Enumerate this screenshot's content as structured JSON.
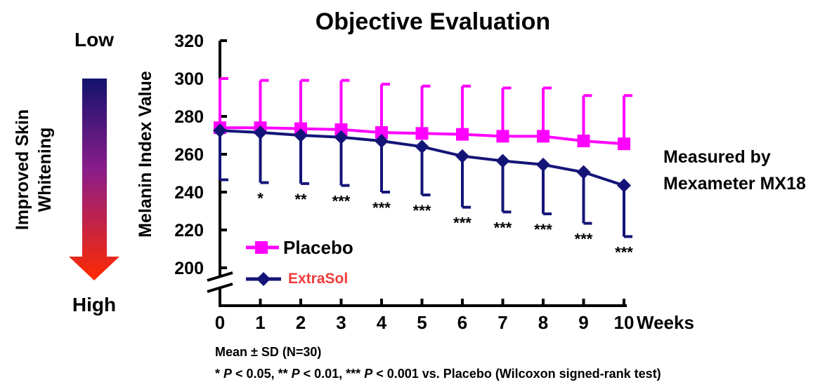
{
  "chart_data": {
    "type": "line",
    "title": "Objective Evaluation",
    "ylabel": "Melanin Index Value",
    "xlabel": "Weeks",
    "ylim": [
      200,
      320
    ],
    "yticks": [
      200,
      220,
      240,
      260,
      280,
      300,
      320
    ],
    "axis_break": true,
    "x": [
      0,
      1,
      2,
      3,
      4,
      5,
      6,
      7,
      8,
      9,
      10
    ],
    "grid": false,
    "legend_placement": "bottom-left",
    "series": [
      {
        "name": "Placebo",
        "color": "#ff00ff",
        "marker": "square",
        "values": [
          274,
          274,
          273.5,
          273,
          271.5,
          271,
          270.5,
          269.5,
          269.5,
          267,
          265.5
        ],
        "sd": [
          26,
          25,
          25.5,
          26,
          25.5,
          25,
          25.5,
          25.5,
          25.5,
          24,
          25.5
        ],
        "error_direction": "up"
      },
      {
        "name": "ExtraSol",
        "color": "#141478",
        "label_color": "#ee3b3b",
        "marker": "diamond",
        "values": [
          272.5,
          271.5,
          270,
          269,
          267,
          264,
          259,
          256.5,
          254.5,
          250.5,
          243.5
        ],
        "sd": [
          26,
          26.5,
          25.5,
          25.5,
          27,
          25.5,
          27,
          27,
          26,
          27,
          27
        ],
        "error_direction": "down"
      }
    ],
    "significance": [
      "",
      "*",
      "**",
      "***",
      "***",
      "***",
      "***",
      "***",
      "***",
      "***",
      "***"
    ]
  },
  "scale_indicator": {
    "top_label": "Low",
    "bottom_label": "High",
    "caption_line1": "Improved Skin",
    "caption_line2": "Whitening",
    "gradient_top_color": "#13136e",
    "gradient_mid_color": "#8a1d8a",
    "gradient_bottom_color": "#ff2a00"
  },
  "annotation": {
    "line1": "Measured by",
    "line2": "Mexameter MX18"
  },
  "footnote": {
    "line1": "Mean ± SD (N=30)",
    "line2_parts": [
      "* ",
      "P",
      " < 0.05, ** ",
      "P",
      " < 0.01, *** ",
      "P",
      " < 0.001 vs. Placebo (Wilcoxon signed-rank test)"
    ]
  }
}
